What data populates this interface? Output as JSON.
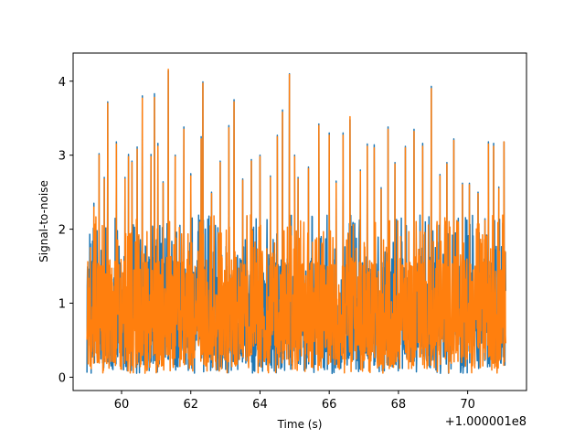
{
  "chart_data": {
    "type": "line",
    "xlabel": "Time (s)",
    "ylabel": "Signal-to-noise",
    "x_offset_label": "+1.000001e8",
    "xlim": [
      58.6,
      71.7
    ],
    "ylim": [
      -0.18,
      4.38
    ],
    "x_ticks": [
      60,
      62,
      64,
      66,
      68,
      70
    ],
    "x_tick_labels": [
      "60",
      "62",
      "64",
      "66",
      "68",
      "70"
    ],
    "y_ticks": [
      0,
      1,
      2,
      3,
      4
    ],
    "y_tick_labels": [
      "0",
      "1",
      "2",
      "3",
      "4"
    ],
    "x_range": [
      59.0,
      71.1
    ],
    "grid": false,
    "series": [
      {
        "color": "#1f77b4",
        "peaks": [
          [
            59.1,
            1.8
          ],
          [
            59.2,
            2.35
          ],
          [
            59.35,
            3.02
          ],
          [
            59.5,
            2.7
          ],
          [
            59.6,
            3.72
          ],
          [
            59.85,
            3.18
          ],
          [
            60.1,
            2.7
          ],
          [
            60.2,
            3.01
          ],
          [
            60.3,
            2.92
          ],
          [
            60.45,
            3.11
          ],
          [
            60.6,
            3.8
          ],
          [
            60.85,
            3.01
          ],
          [
            60.95,
            3.83
          ],
          [
            61.05,
            3.16
          ],
          [
            61.2,
            2.64
          ],
          [
            61.35,
            4.14
          ],
          [
            61.55,
            3.0
          ],
          [
            61.8,
            3.38
          ],
          [
            62.0,
            2.75
          ],
          [
            62.3,
            3.25
          ],
          [
            62.35,
            3.99
          ],
          [
            62.6,
            2.5
          ],
          [
            62.85,
            2.92
          ],
          [
            63.1,
            3.4
          ],
          [
            63.25,
            3.75
          ],
          [
            63.5,
            2.68
          ],
          [
            63.75,
            2.94
          ],
          [
            64.0,
            3.0
          ],
          [
            64.3,
            2.72
          ],
          [
            64.5,
            3.27
          ],
          [
            64.65,
            3.61
          ],
          [
            64.85,
            4.1
          ],
          [
            65.0,
            3.0
          ],
          [
            65.1,
            2.7
          ],
          [
            65.4,
            2.84
          ],
          [
            65.7,
            3.42
          ],
          [
            66.0,
            3.3
          ],
          [
            66.2,
            2.65
          ],
          [
            66.4,
            3.3
          ],
          [
            66.6,
            3.48
          ],
          [
            66.9,
            2.8
          ],
          [
            67.1,
            3.15
          ],
          [
            67.3,
            3.14
          ],
          [
            67.5,
            2.56
          ],
          [
            67.7,
            3.38
          ],
          [
            67.9,
            2.9
          ],
          [
            68.2,
            3.12
          ],
          [
            68.45,
            3.35
          ],
          [
            68.7,
            3.16
          ],
          [
            68.95,
            3.93
          ],
          [
            69.2,
            2.74
          ],
          [
            69.4,
            2.9
          ],
          [
            69.6,
            3.22
          ],
          [
            69.85,
            2.62
          ],
          [
            70.05,
            2.62
          ],
          [
            70.3,
            2.5
          ],
          [
            70.5,
            2.14
          ],
          [
            70.6,
            3.18
          ],
          [
            70.75,
            3.16
          ],
          [
            70.9,
            2.57
          ],
          [
            71.05,
            3.18
          ]
        ]
      },
      {
        "color": "#ff7f0e",
        "peaks": [
          [
            59.1,
            1.75
          ],
          [
            59.2,
            2.3
          ],
          [
            59.35,
            3.0
          ],
          [
            59.5,
            2.68
          ],
          [
            59.6,
            3.7
          ],
          [
            59.85,
            3.15
          ],
          [
            60.1,
            2.68
          ],
          [
            60.2,
            2.98
          ],
          [
            60.3,
            2.9
          ],
          [
            60.45,
            3.08
          ],
          [
            60.6,
            3.77
          ],
          [
            60.85,
            2.98
          ],
          [
            60.95,
            3.78
          ],
          [
            61.05,
            3.12
          ],
          [
            61.2,
            2.62
          ],
          [
            61.35,
            4.16
          ],
          [
            61.55,
            2.98
          ],
          [
            61.8,
            3.35
          ],
          [
            62.0,
            2.72
          ],
          [
            62.3,
            3.22
          ],
          [
            62.35,
            3.97
          ],
          [
            62.6,
            2.48
          ],
          [
            62.85,
            2.9
          ],
          [
            63.1,
            3.37
          ],
          [
            63.25,
            3.72
          ],
          [
            63.5,
            2.66
          ],
          [
            63.75,
            2.92
          ],
          [
            64.0,
            2.98
          ],
          [
            64.3,
            2.7
          ],
          [
            64.5,
            3.25
          ],
          [
            64.65,
            3.58
          ],
          [
            64.85,
            4.09
          ],
          [
            65.0,
            2.98
          ],
          [
            65.1,
            2.68
          ],
          [
            65.4,
            2.82
          ],
          [
            65.7,
            3.4
          ],
          [
            66.0,
            3.27
          ],
          [
            66.2,
            2.62
          ],
          [
            66.4,
            3.27
          ],
          [
            66.6,
            3.52
          ],
          [
            66.9,
            2.78
          ],
          [
            67.1,
            3.12
          ],
          [
            67.3,
            3.1
          ],
          [
            67.5,
            2.54
          ],
          [
            67.7,
            3.35
          ],
          [
            67.9,
            2.88
          ],
          [
            68.2,
            3.1
          ],
          [
            68.45,
            3.32
          ],
          [
            68.7,
            3.12
          ],
          [
            68.95,
            3.9
          ],
          [
            69.2,
            2.72
          ],
          [
            69.4,
            2.88
          ],
          [
            69.6,
            3.2
          ],
          [
            69.85,
            2.6
          ],
          [
            70.05,
            2.6
          ],
          [
            70.3,
            2.48
          ],
          [
            70.5,
            2.12
          ],
          [
            70.6,
            3.15
          ],
          [
            70.75,
            3.12
          ],
          [
            70.9,
            2.55
          ],
          [
            71.05,
            3.18
          ]
        ]
      }
    ]
  }
}
